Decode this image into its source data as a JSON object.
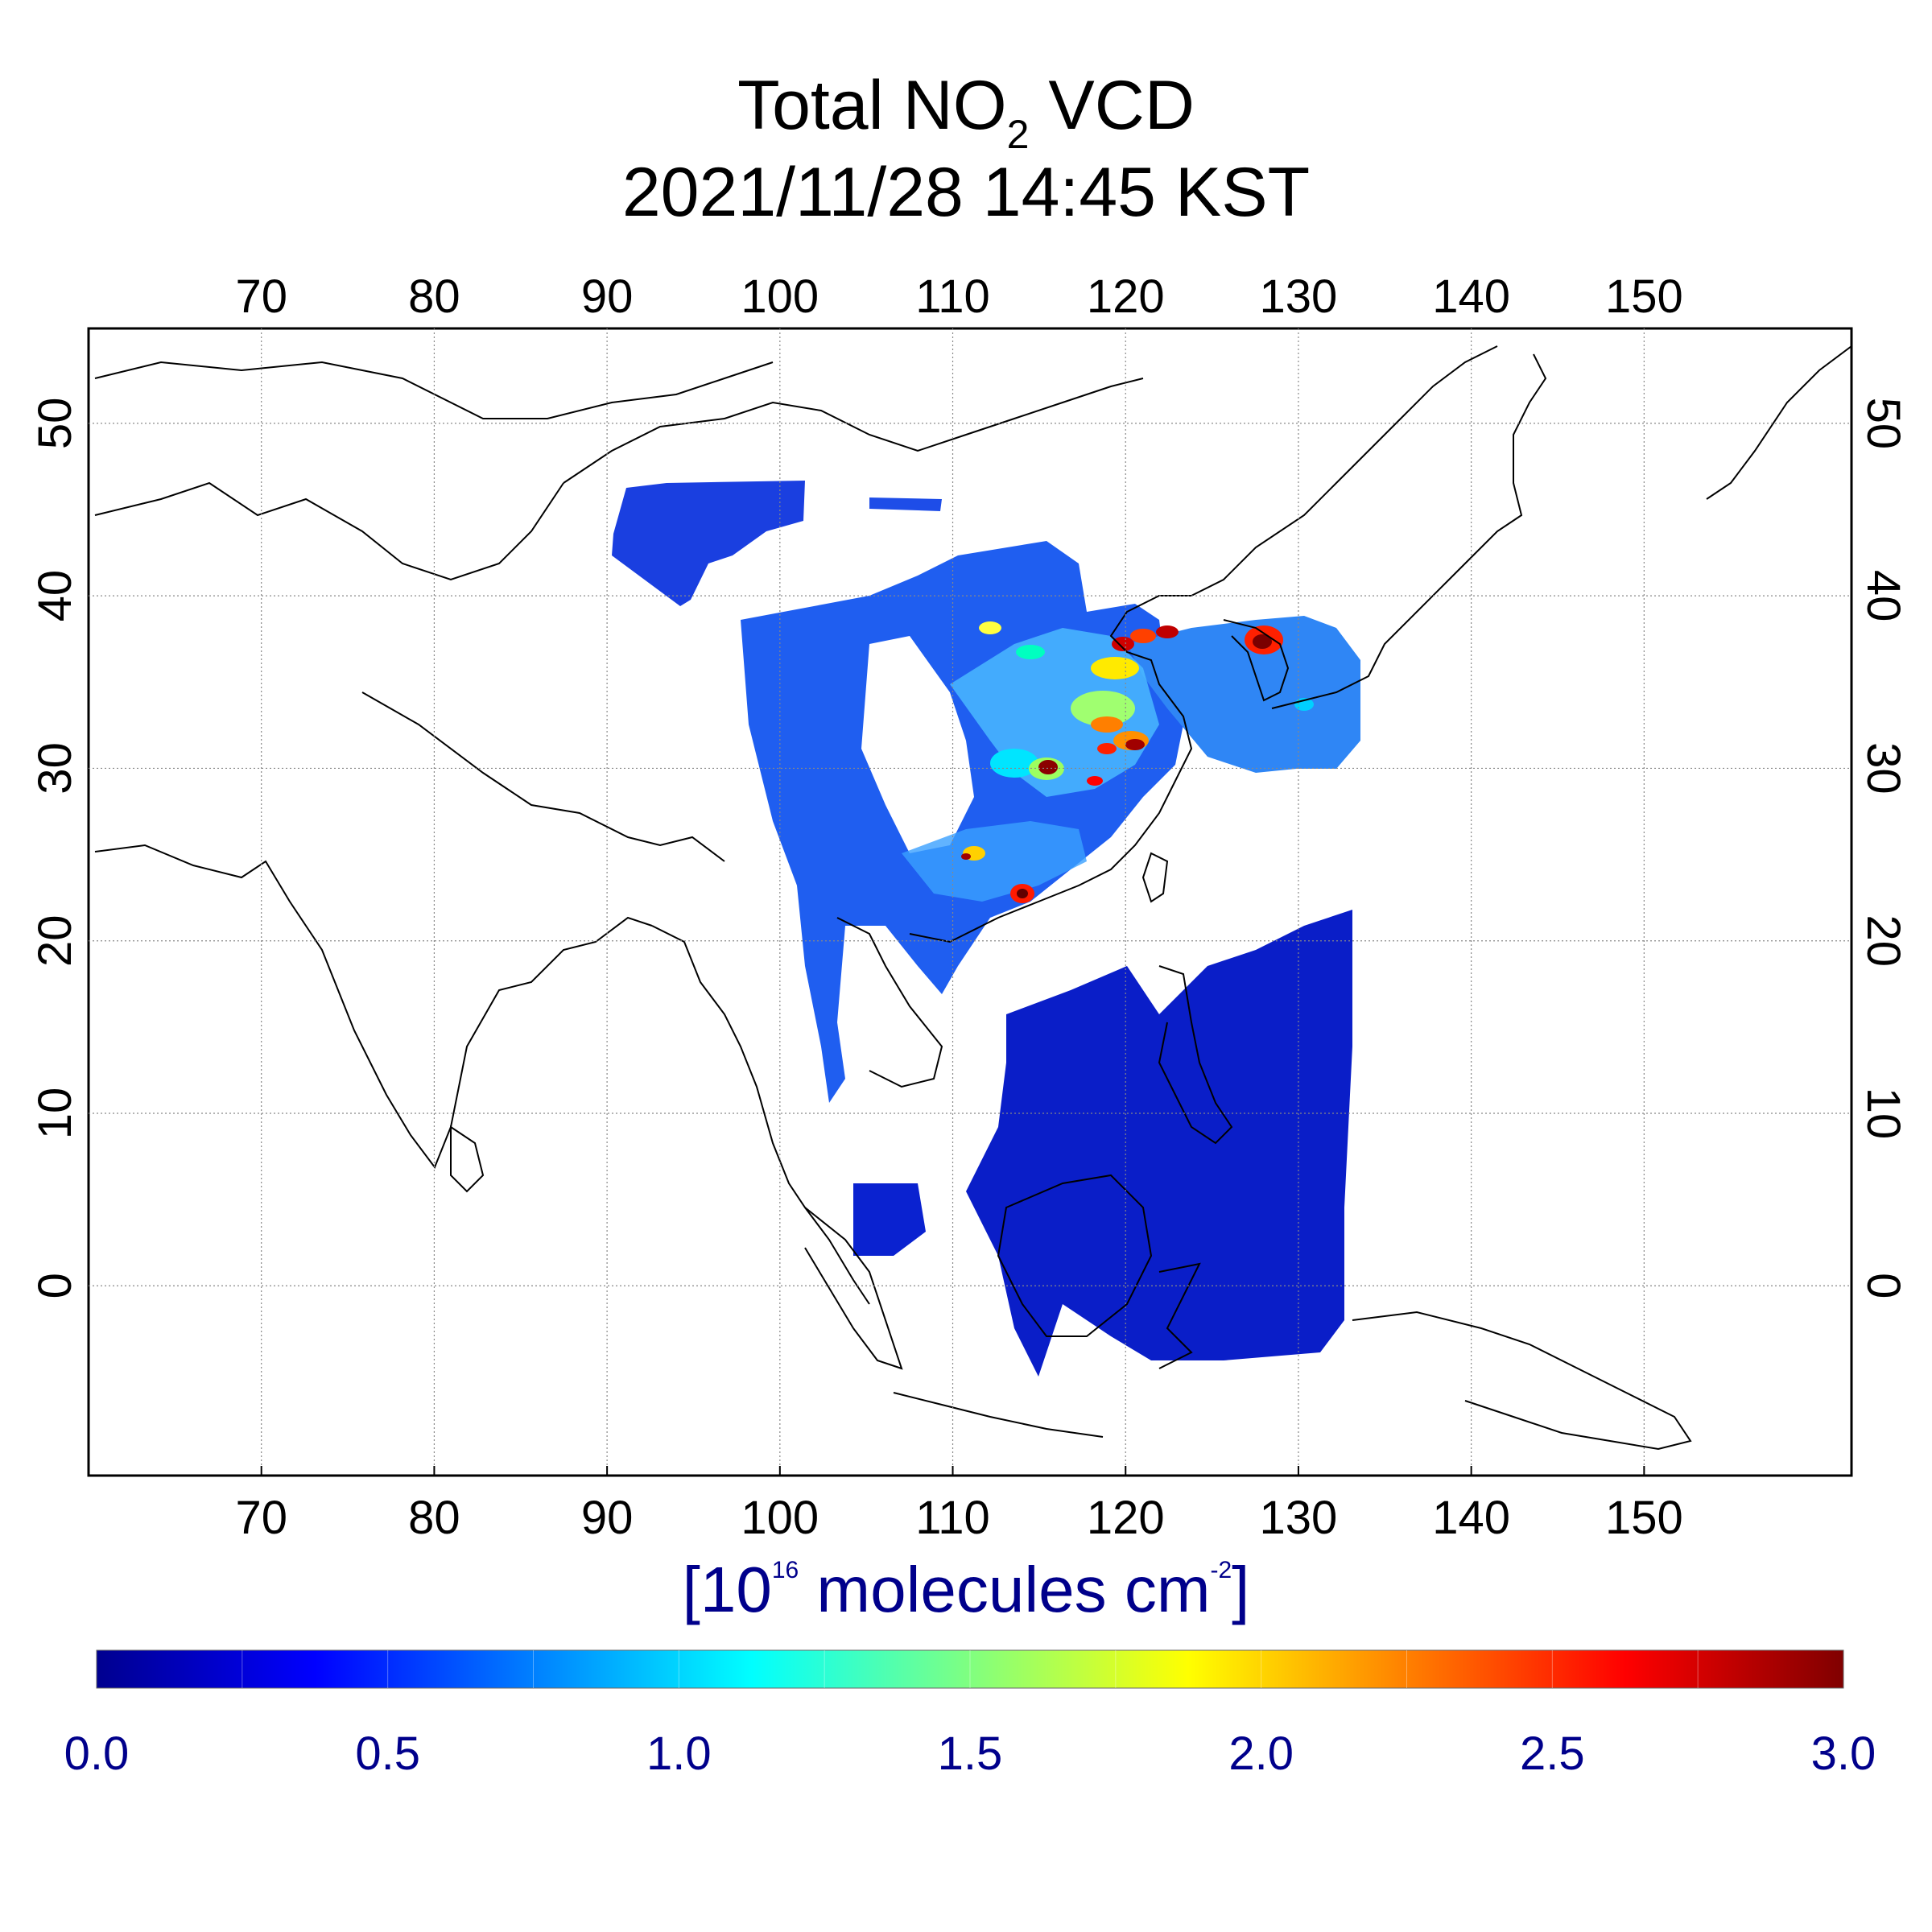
{
  "title": {
    "prefix": "Total NO",
    "subscript": "2",
    "suffix": " VCD",
    "datetime": "2021/11/28 14:45 KST"
  },
  "map": {
    "lon_range": [
      60,
      162
    ],
    "lat_range": [
      -11,
      55.5
    ],
    "lon_ticks": [
      "70",
      "80",
      "90",
      "100",
      "110",
      "120",
      "130",
      "140",
      "150"
    ],
    "lat_ticks": [
      "0",
      "10",
      "20",
      "30",
      "40",
      "50"
    ],
    "gridlines": true,
    "projection": "equirectangular"
  },
  "colorbar": {
    "units_prefix": "[10",
    "units_exp": "16",
    "units_mid": " molecules cm",
    "units_exp2": "-2",
    "units_suffix": "]",
    "ticks": [
      "0.0",
      "0.5",
      "1.0",
      "1.5",
      "2.0",
      "2.5",
      "3.0"
    ],
    "range": [
      0.0,
      3.0
    ],
    "colormap": [
      "#00008f",
      "#0000ff",
      "#0080ff",
      "#00ffff",
      "#80ff80",
      "#ffff00",
      "#ff8000",
      "#ff0000",
      "#800000"
    ]
  }
}
